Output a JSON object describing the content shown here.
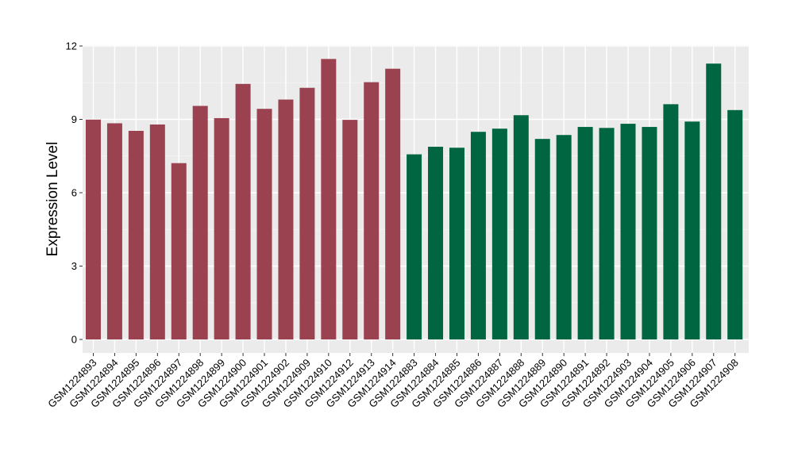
{
  "chart_data": {
    "type": "bar",
    "title": "",
    "xlabel": "",
    "ylabel": "Expression Level",
    "ylim": [
      0,
      12
    ],
    "yticks": [
      0,
      3,
      6,
      9,
      12
    ],
    "grid": true,
    "legend": "none",
    "group_colors": [
      "#9b4250",
      "#006641"
    ],
    "categories": [
      "GSM1224893",
      "GSM1224894",
      "GSM1224895",
      "GSM1224896",
      "GSM1224897",
      "GSM1224898",
      "GSM1224899",
      "GSM1224900",
      "GSM1224901",
      "GSM1224902",
      "GSM1224909",
      "GSM1224910",
      "GSM1224912",
      "GSM1224913",
      "GSM1224914",
      "GSM1224883",
      "GSM1224884",
      "GSM1224885",
      "GSM1224886",
      "GSM1224887",
      "GSM1224888",
      "GSM1224889",
      "GSM1224890",
      "GSM1224891",
      "GSM1224892",
      "GSM1224903",
      "GSM1224904",
      "GSM1224905",
      "GSM1224906",
      "GSM1224907",
      "GSM1224908"
    ],
    "values": [
      8.99,
      8.84,
      8.53,
      8.79,
      7.21,
      9.55,
      9.05,
      10.45,
      9.43,
      9.81,
      10.29,
      11.47,
      8.98,
      10.52,
      11.07,
      7.57,
      7.88,
      7.84,
      8.49,
      8.62,
      9.17,
      8.2,
      8.36,
      8.69,
      8.65,
      8.82,
      8.69,
      9.62,
      8.91,
      11.28,
      9.38
    ],
    "groups": [
      0,
      0,
      0,
      0,
      0,
      0,
      0,
      0,
      0,
      0,
      0,
      0,
      0,
      0,
      0,
      1,
      1,
      1,
      1,
      1,
      1,
      1,
      1,
      1,
      1,
      1,
      1,
      1,
      1,
      1,
      1
    ]
  }
}
